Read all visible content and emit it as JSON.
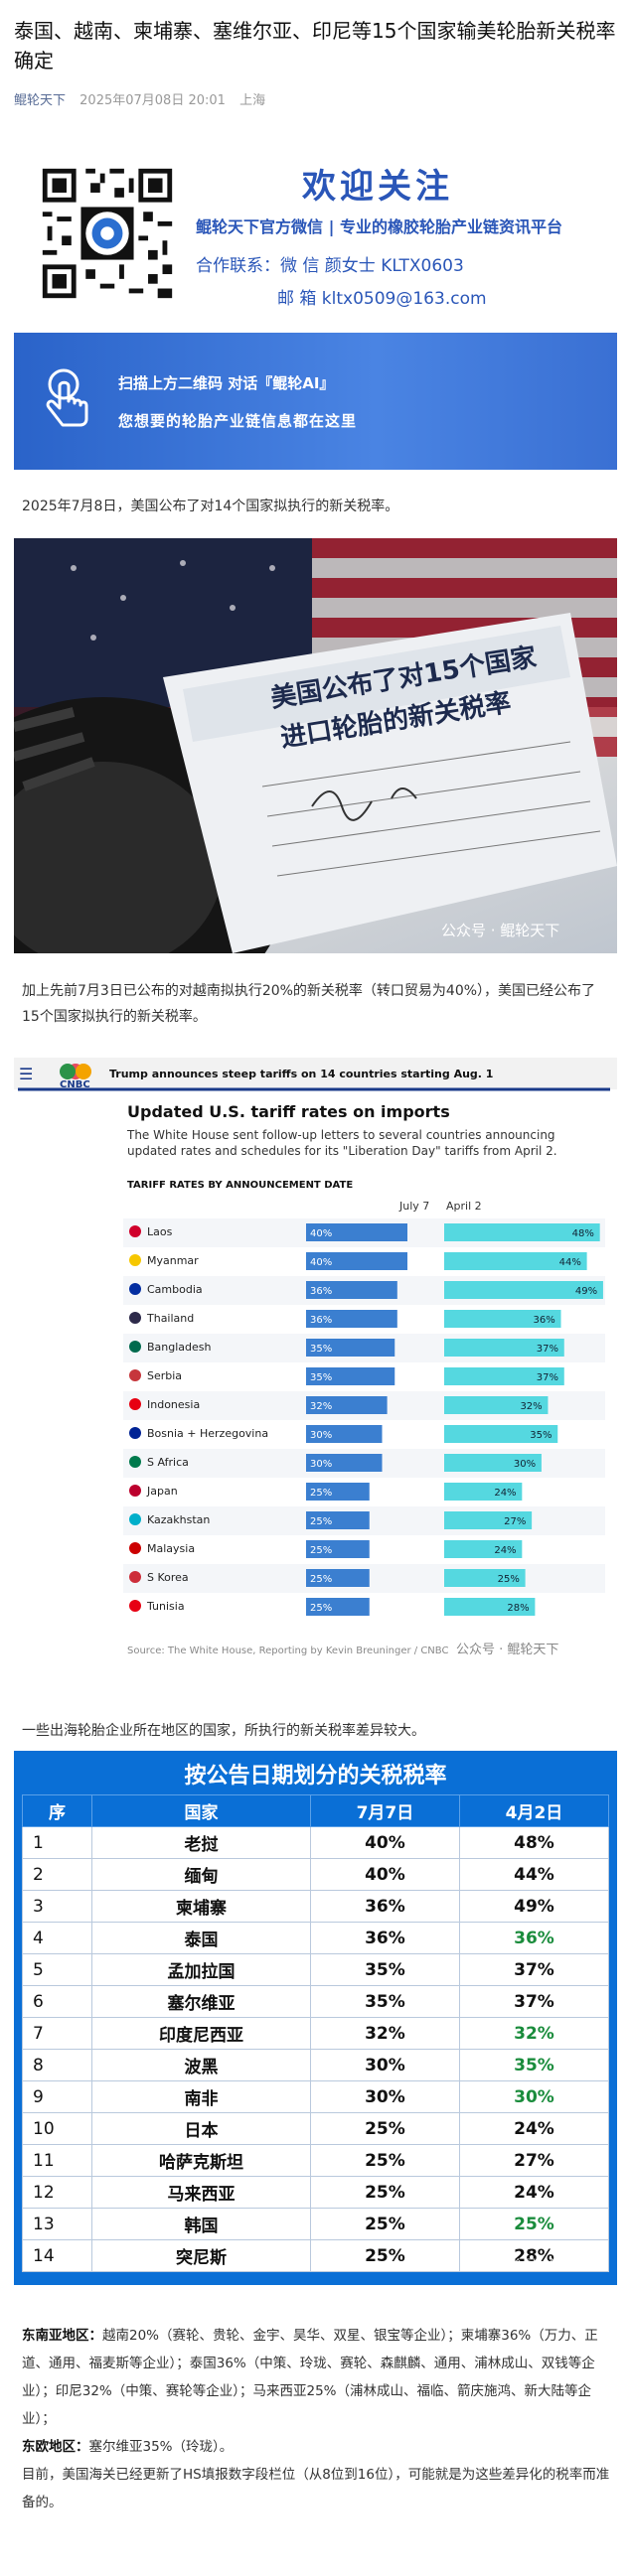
{
  "article": {
    "title": "泰国、越南、柬埔寨、塞维尔亚、印尼等15个国家输美轮胎新关税率确定",
    "account": "鲲轮天下",
    "datetime": "2025年07月08日 20:01",
    "location": "上海"
  },
  "welcome": {
    "title": "欢迎关注",
    "subtitle": "鲲轮天下官方微信 | 专业的橡胶轮胎产业链资讯平台",
    "contact_line1": "合作联系：微  信  颜女士 KLTX0603",
    "contact_line2": "邮  箱  kltx0509@163.com"
  },
  "banner": {
    "line1": "扫描上方二维码    对话『鲲轮AI』",
    "line2": "您想要的轮胎产业链信息都在这里"
  },
  "paragraphs": {
    "p1": "2025年7月8日，美国公布了对14个国家拟执行的新关税率。",
    "p2": "加上先前7月3日已公布的对越南拟执行20%的新关税率（转口贸易为40%），美国已经公布了15个国家拟执行的新关税率。",
    "p3": "一些出海轮胎企业所在地区的国家，所执行的新关税率差异较大。"
  },
  "photo": {
    "sign_line1": "美国公布了对15个国家",
    "sign_line2": "进口轮胎的新关税率",
    "watermark": "公众号 · 鲲轮天下"
  },
  "cnbc": {
    "logo": "CNBC",
    "headline": "Trump announces steep tariffs on 14 countries starting Aug. 1",
    "chart_title": "Updated U.S. tariff rates on imports",
    "chart_sub": "The White House sent follow-up letters to several countries announcing updated rates and schedules for its \"Liberation Day\" tariffs from April 2.",
    "section": "TARIFF RATES BY ANNOUNCEMENT DATE",
    "col_july": "July 7",
    "col_april": "April 2",
    "source": "Source: The White House, Reporting by Kevin Breuninger / CNBC",
    "watermark": "公众号 · 鲲轮天下"
  },
  "chart_data": {
    "type": "bar",
    "title": "Updated U.S. tariff rates on imports",
    "categories": [
      "Laos",
      "Myanmar",
      "Cambodia",
      "Thailand",
      "Bangladesh",
      "Serbia",
      "Indonesia",
      "Bosnia + Herzegovina",
      "S Africa",
      "Japan",
      "Kazakhstan",
      "Malaysia",
      "S Korea",
      "Tunisia"
    ],
    "series": [
      {
        "name": "July 7",
        "values": [
          40,
          40,
          36,
          36,
          35,
          35,
          32,
          30,
          30,
          25,
          25,
          25,
          25,
          25
        ],
        "labels": [
          "40%",
          "40%",
          "36%",
          "36%",
          "35%",
          "35%",
          "32%",
          "30%",
          "30%",
          "25%",
          "25%",
          "25%",
          "25%",
          "25%"
        ]
      },
      {
        "name": "April 2",
        "values": [
          48,
          44,
          49,
          36,
          37,
          37,
          32,
          35,
          30,
          24,
          27,
          24,
          25,
          28
        ],
        "labels": [
          "48%",
          "44%",
          "49%",
          "36%",
          "37%",
          "37%",
          "32%",
          "35%",
          "30%",
          "24%",
          "27%",
          "24%",
          "25%",
          "28%"
        ]
      }
    ],
    "xlim": [
      0,
      50
    ],
    "colors": {
      "july": "#3b7fd0",
      "april": "#55d8e0"
    }
  },
  "table": {
    "title": "按公告日期划分的关税税率",
    "headers": [
      "序",
      "国家",
      "7月7日",
      "4月2日"
    ],
    "rows": [
      [
        "1",
        "老挝",
        "40%",
        "48%"
      ],
      [
        "2",
        "缅甸",
        "40%",
        "44%"
      ],
      [
        "3",
        "柬埔寨",
        "36%",
        "49%"
      ],
      [
        "4",
        "泰国",
        "36%",
        "36%"
      ],
      [
        "5",
        "孟加拉国",
        "35%",
        "37%"
      ],
      [
        "6",
        "塞尔维亚",
        "35%",
        "37%"
      ],
      [
        "7",
        "印度尼西亚",
        "32%",
        "32%"
      ],
      [
        "8",
        "波黑",
        "30%",
        "35%"
      ],
      [
        "9",
        "南非",
        "30%",
        "30%"
      ],
      [
        "10",
        "日本",
        "25%",
        "24%"
      ],
      [
        "11",
        "哈萨克斯坦",
        "25%",
        "27%"
      ],
      [
        "12",
        "马来西亚",
        "25%",
        "24%"
      ],
      [
        "13",
        "韩国",
        "25%",
        "25%"
      ],
      [
        "14",
        "突尼斯",
        "25%",
        "28%"
      ]
    ],
    "green_rows": [
      3,
      6,
      7,
      8,
      12
    ],
    "watermark": "公众号 · 鲲轮天下"
  },
  "footer": {
    "sea_label": "东南亚地区：",
    "sea_text": "越南20%（赛轮、贵轮、金宇、昊华、双星、银宝等企业）；柬埔寨36%（万力、正道、通用、福麦斯等企业）；泰国36%（中策、玲珑、赛轮、森麒麟、通用、浦林成山、双钱等企业）；印尼32%（中策、赛轮等企业）；马来西亚25%（浦林成山、福临、箭庆施鸿、新大陆等企业）；",
    "eu_label": "东欧地区：",
    "eu_text": "塞尔维亚35%（玲珑）。",
    "closing": "目前，美国海关已经更新了HS填报数字段栏位（从8位到16位），可能就是为这些差异化的税率而准备的。"
  }
}
